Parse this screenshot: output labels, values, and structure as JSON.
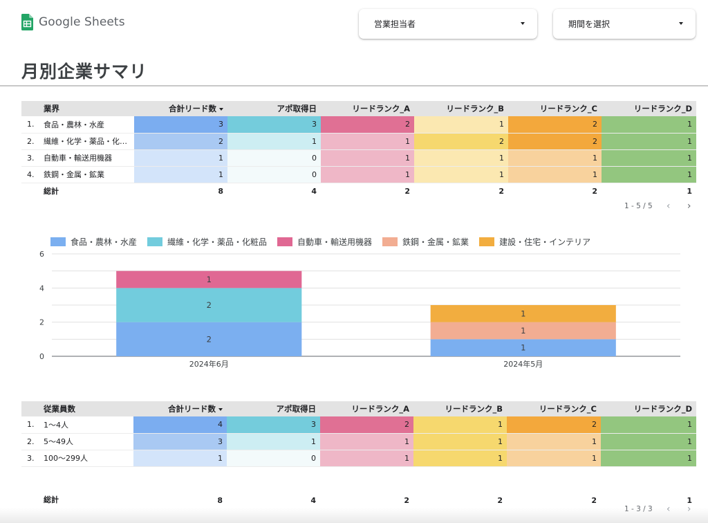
{
  "app": {
    "name": "Google Sheets"
  },
  "filters": {
    "owner_label": "営業担当者",
    "period_label": "期間を選択"
  },
  "page": {
    "title": "月別企業サマリ"
  },
  "colors": {
    "lead_dark": "#7badf0",
    "lead_mid": "#a9c9f3",
    "lead_light": "#d3e4fa",
    "appo_dark": "#74ccdc",
    "appo_mid": "#cdeef3",
    "appo_light": "#f3fafb",
    "rank_a_dark": "#e07094",
    "rank_a_light": "#efb7c7",
    "rank_b_dark": "#f6d86e",
    "rank_b_light": "#fbe8b1",
    "rank_c_dark": "#f3a83c",
    "rank_c_light": "#f8d29d",
    "rank_d": "#93c67f",
    "series": [
      "#7baff0",
      "#72ccdd",
      "#e06893",
      "#f2ad92",
      "#f2ad3f"
    ]
  },
  "table1": {
    "headers": [
      "業界",
      "合計リード数",
      "アポ取得日",
      "リードランク_A",
      "リードランク_B",
      "リードランク_C",
      "リードランク_D"
    ],
    "rows": [
      {
        "idx": "1.",
        "label": "食品・農林・水産",
        "lead": "3",
        "appo": "3",
        "a": "2",
        "b": "1",
        "c": "2",
        "d": "1"
      },
      {
        "idx": "2.",
        "label": "繊維・化学・薬品・化粧...",
        "lead": "2",
        "appo": "1",
        "a": "1",
        "b": "2",
        "c": "2",
        "d": "1"
      },
      {
        "idx": "3.",
        "label": "自動車・輸送用機器",
        "lead": "1",
        "appo": "0",
        "a": "1",
        "b": "1",
        "c": "1",
        "d": "1"
      },
      {
        "idx": "4.",
        "label": "鉄鋼・金属・鉱業",
        "lead": "1",
        "appo": "0",
        "a": "1",
        "b": "1",
        "c": "1",
        "d": "1"
      }
    ],
    "total": {
      "label": "総計",
      "lead": "8",
      "appo": "4",
      "a": "2",
      "b": "2",
      "c": "2",
      "d": "1"
    },
    "pager": "1 - 5 / 5"
  },
  "table2": {
    "headers": [
      "従業員数",
      "合計リード数",
      "アポ取得日",
      "リードランク_A",
      "リードランク_B",
      "リードランク_C",
      "リードランク_D"
    ],
    "rows": [
      {
        "idx": "1.",
        "label": "1〜4人",
        "lead": "4",
        "appo": "3",
        "a": "2",
        "b": "1",
        "c": "2",
        "d": "1"
      },
      {
        "idx": "2.",
        "label": "5〜49人",
        "lead": "3",
        "appo": "1",
        "a": "1",
        "b": "1",
        "c": "1",
        "d": "1"
      },
      {
        "idx": "3.",
        "label": "100〜299人",
        "lead": "1",
        "appo": "0",
        "a": "1",
        "b": "1",
        "c": "1",
        "d": "1"
      }
    ],
    "total": {
      "label": "総計",
      "lead": "8",
      "appo": "4",
      "a": "2",
      "b": "2",
      "c": "2",
      "d": "1"
    },
    "pager": "1 - 3 / 3"
  },
  "icons": {
    "prev": "chevron-left-icon",
    "next": "chevron-right-icon",
    "dropdown": "caret-down-icon",
    "sort": "sort-desc-icon"
  },
  "chart_data": {
    "type": "bar",
    "stacked": true,
    "categories": [
      "2024年6月",
      "2024年5月"
    ],
    "series": [
      {
        "name": "食品・農林・水産",
        "values": [
          2,
          1
        ]
      },
      {
        "name": "繊維・化学・薬品・化粧品",
        "values": [
          2,
          0
        ]
      },
      {
        "name": "自動車・輸送用機器",
        "values": [
          1,
          0
        ]
      },
      {
        "name": "鉄鋼・金属・鉱業",
        "values": [
          0,
          1
        ]
      },
      {
        "name": "建設・住宅・インテリア",
        "values": [
          0,
          1
        ]
      }
    ],
    "ylim": [
      0,
      6
    ],
    "yticks": [
      "0",
      "2",
      "4",
      "6"
    ],
    "grid": true,
    "legend": "top"
  }
}
